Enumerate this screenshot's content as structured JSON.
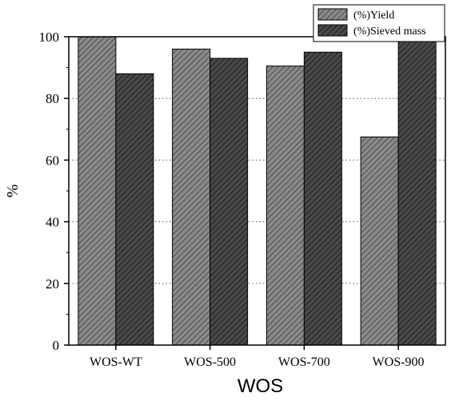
{
  "chart_data": {
    "type": "bar",
    "categories": [
      "WOS-WT",
      "WOS-500",
      "WOS-700",
      "WOS-900"
    ],
    "series": [
      {
        "name": "(%)Yield",
        "values": [
          100,
          96,
          90.5,
          67.5
        ],
        "color": "#7a7a7a",
        "pattern": "hatch-light"
      },
      {
        "name": "(%)Sieved mass",
        "values": [
          88,
          93,
          95,
          98.5
        ],
        "color": "#404040",
        "pattern": "hatch-dark"
      }
    ],
    "xlabel": "WOS",
    "ylabel": "%",
    "ylim": [
      0,
      100
    ],
    "yticks": [
      0,
      20,
      40,
      60,
      80,
      100
    ],
    "grid": "horizontal-dotted",
    "legend_position": "top-right"
  }
}
